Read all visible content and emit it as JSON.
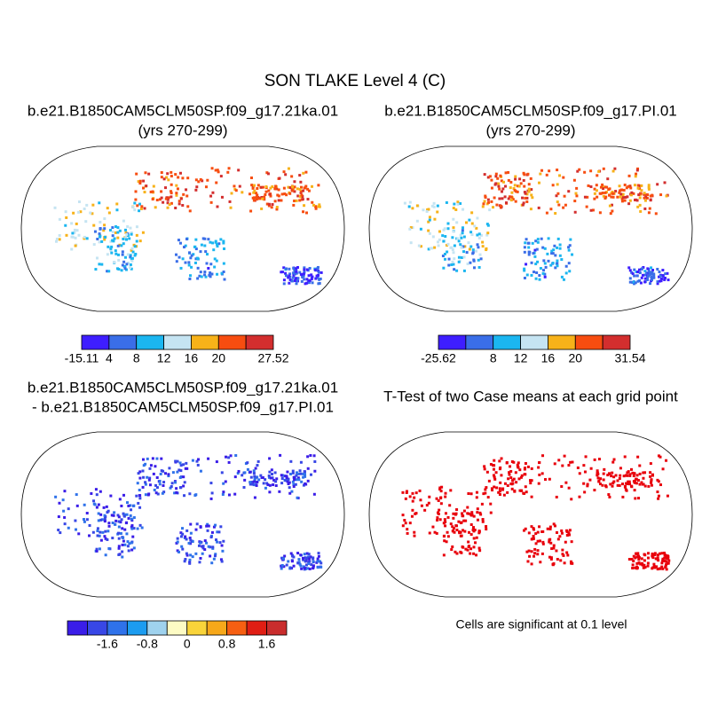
{
  "title": "SON TLAKE Level 4 (C)",
  "panels": [
    {
      "title": "b.e21.B1850CAM5CLM50SP.f09_g17.21ka.01",
      "subtitle": "(yrs 270-299)",
      "colorbar": {
        "colors": [
          "#3e1eff",
          "#3a6ee8",
          "#1bb6f0",
          "#c5e4f2",
          "#f7b219",
          "#f74d10",
          "#d32e2e"
        ],
        "labels": [
          -15.11,
          4,
          8,
          12,
          16,
          20,
          null,
          27.52
        ]
      }
    },
    {
      "title": "b.e21.B1850CAM5CLM50SP.f09_g17.PI.01",
      "subtitle": "(yrs 270-299)",
      "colorbar": {
        "colors": [
          "#3e1eff",
          "#3a6ee8",
          "#1bb6f0",
          "#c5e4f2",
          "#f7b219",
          "#f74d10",
          "#d32e2e"
        ],
        "labels": [
          -25.62,
          null,
          8,
          12,
          16,
          20,
          null,
          31.54
        ]
      }
    },
    {
      "title": "b.e21.B1850CAM5CLM50SP.f09_g17.21ka.01",
      "subtitle": "- b.e21.B1850CAM5CLM50SP.f09_g17.PI.01",
      "colorbar": {
        "colors": [
          "#3a1de8",
          "#3847e6",
          "#2f72ea",
          "#1c9cf0",
          "#9fd2ee",
          "#fdfbc4",
          "#f9d43a",
          "#f7a81a",
          "#f65f12",
          "#e01e14",
          "#c92d2d"
        ],
        "labels": [
          null,
          null,
          -1.6,
          null,
          -0.8,
          null,
          0,
          null,
          0.8,
          null,
          1.6,
          null
        ]
      }
    },
    {
      "title": "T-Test of two Case means at each grid point",
      "note": "Cells are significant at 0.1 level",
      "color": "#e8000b"
    }
  ]
}
